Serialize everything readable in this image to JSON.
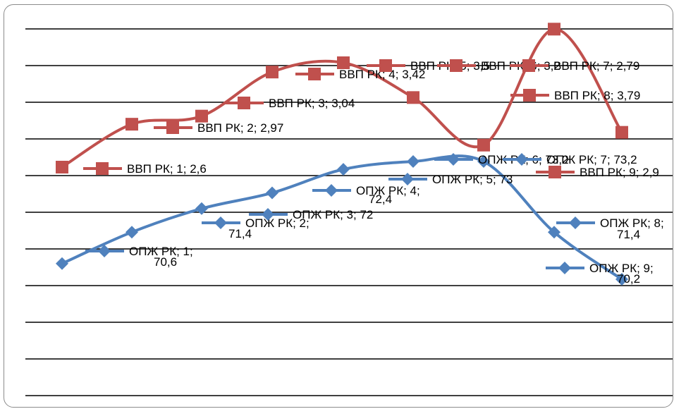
{
  "chart_data": {
    "type": "line",
    "grid": true,
    "legend": "none",
    "x": [
      1,
      2,
      3,
      4,
      5,
      6,
      7,
      8,
      9
    ],
    "series": [
      {
        "name": "ВВП РК",
        "color": "#c0504d",
        "marker": "square",
        "values": [
          2.6,
          2.97,
          3.04,
          3.42,
          3.5,
          3.2,
          2.79,
          3.79,
          2.9
        ],
        "labels": [
          "ВВП РК; 1; 2,6",
          "ВВП РК; 2; 2,97",
          "ВВП РК; 3; 3,04",
          "ВВП РК; 4; 3,42",
          "ВВП РК; 5; 3,5",
          "ВВП РК; 6; 3,2",
          "ВВП РК; 7; 2,79",
          "ВВП РК; 8; 3,79",
          "ВВП РК; 9; 2,9"
        ]
      },
      {
        "name": "ОПЖ РК",
        "color": "#4f81bd",
        "marker": "diamond",
        "values": [
          70.6,
          71.4,
          72,
          72.4,
          73,
          73.2,
          73.2,
          71.4,
          70.2
        ],
        "labels": [
          "ОПЖ РК; 1; 70,6",
          "ОПЖ РК; 2; 71,4",
          "ОПЖ РК; 3; 72",
          "ОПЖ РК; 4; 72,4",
          "ОПЖ РК; 5; 73",
          "ОПЖ РК; 6; 73,2",
          "ОПЖ РК; 7; 73,2",
          "ОПЖ РК; 8; 71,4",
          "ОПЖ РК; 9; 70,2"
        ]
      }
    ]
  }
}
